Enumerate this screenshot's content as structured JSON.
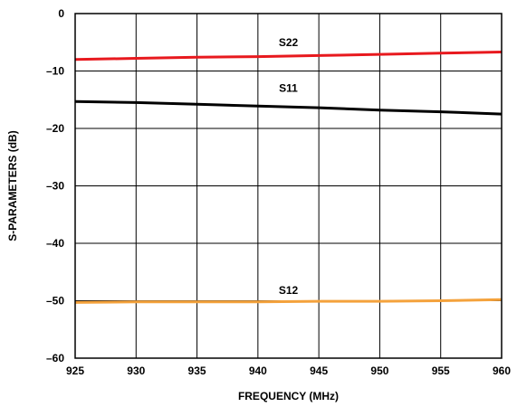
{
  "chart_data": {
    "type": "line",
    "xlabel": "FREQUENCY (MHz)",
    "ylabel": "S-PARAMETERS (dB)",
    "xlim": [
      925,
      960
    ],
    "ylim": [
      -60,
      0
    ],
    "xticks": [
      925,
      930,
      935,
      940,
      945,
      950,
      955,
      960
    ],
    "yticks": [
      0,
      -10,
      -20,
      -30,
      -40,
      -50,
      -60
    ],
    "xtick_labels": [
      "925",
      "930",
      "935",
      "940",
      "945",
      "950",
      "955",
      "960"
    ],
    "ytick_labels": [
      "0",
      "–10",
      "–20",
      "–30",
      "–40",
      "–50",
      "–60"
    ],
    "grid": true,
    "series": [
      {
        "name": "S22",
        "color": "#e8191e",
        "x": [
          925,
          930,
          935,
          940,
          945,
          950,
          955,
          960
        ],
        "y": [
          -8.0,
          -7.8,
          -7.6,
          -7.5,
          -7.3,
          -7.1,
          -6.9,
          -6.7
        ],
        "label_at": [
          942.5,
          -5.0
        ]
      },
      {
        "name": "S11",
        "color": "#000000",
        "x": [
          925,
          930,
          935,
          940,
          945,
          950,
          955,
          960
        ],
        "y": [
          -15.3,
          -15.5,
          -15.8,
          -16.1,
          -16.4,
          -16.8,
          -17.1,
          -17.5
        ],
        "label_at": [
          942.5,
          -13.0
        ]
      },
      {
        "name": "S12",
        "color": "#f4a23c",
        "x": [
          925,
          930,
          935,
          940,
          945,
          950,
          955,
          960
        ],
        "y": [
          -50.3,
          -50.2,
          -50.2,
          -50.2,
          -50.1,
          -50.1,
          -50.0,
          -49.8
        ],
        "label_at": [
          942.5,
          -48.2
        ]
      }
    ]
  }
}
